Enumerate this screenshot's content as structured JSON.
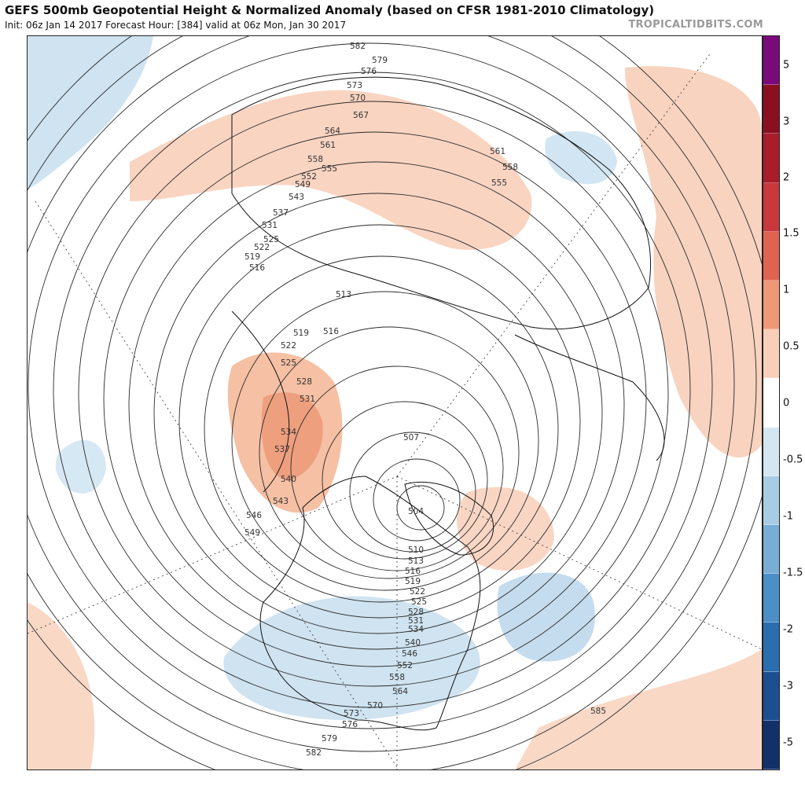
{
  "header": {
    "title": "GEFS 500mb Geopotential Height & Normalized Anomaly (based on CFSR 1981-2010 Climatology)",
    "subtitle": "Init: 06z Jan 14 2017   Forecast Hour: [384]   valid at 06z Mon, Jan 30 2017",
    "brand": "TROPICALTIDBITS.COM"
  },
  "colorbar": {
    "tick_labels": [
      "5",
      "3",
      "2",
      "1.5",
      "1",
      "0.5",
      "0",
      "-0.5",
      "-1",
      "-1.5",
      "-2",
      "-3",
      "-5"
    ],
    "colors": [
      "#7a0a7a",
      "#8a1020",
      "#a81c2c",
      "#c8383c",
      "#de6450",
      "#ee9878",
      "#f8cfb8",
      "#ffffff",
      "#d4e6f2",
      "#a8cce4",
      "#78aed6",
      "#4c8ec6",
      "#2a6eb0",
      "#1c4e90",
      "#12306a"
    ]
  },
  "contours": {
    "labels": [
      "582",
      "579",
      "576",
      "573",
      "570",
      "567",
      "564",
      "561",
      "558",
      "555",
      "552",
      "549",
      "543",
      "537",
      "531",
      "525",
      "522",
      "519",
      "516",
      "513",
      "519",
      "516",
      "522",
      "525",
      "528",
      "531",
      "534",
      "537",
      "540",
      "543",
      "546",
      "549",
      "507",
      "504",
      "510",
      "513",
      "516",
      "519",
      "522",
      "525",
      "528",
      "531",
      "534",
      "540",
      "546",
      "552",
      "558",
      "564",
      "570",
      "573",
      "576",
      "579",
      "582",
      "585",
      "561",
      "558",
      "555"
    ]
  }
}
